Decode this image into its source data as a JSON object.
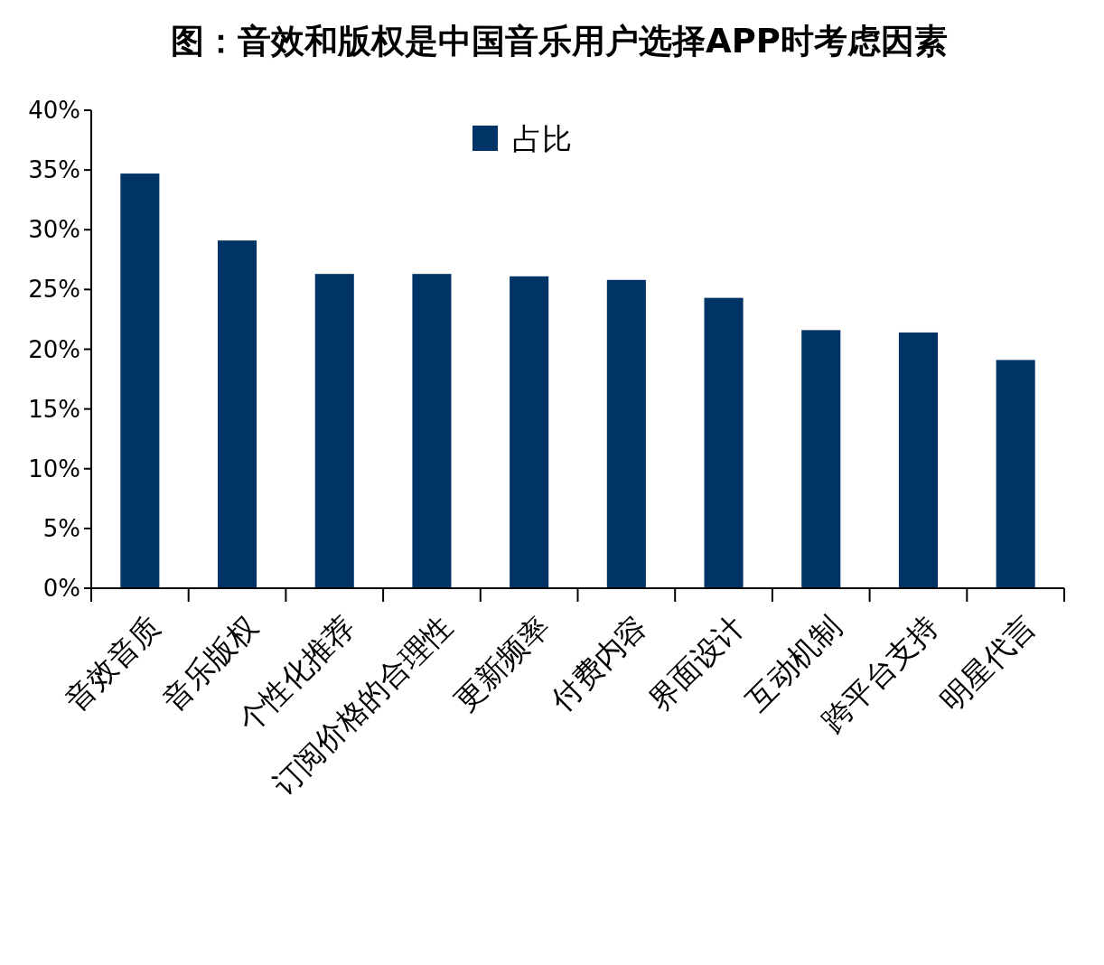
{
  "chart_data": {
    "type": "bar",
    "title": "图：音效和版权是中国音乐用户选择APP时考虑因素",
    "categories": [
      "音效音质",
      "音乐版权",
      "个性化推荐",
      "订阅价格的合理性",
      "更新频率",
      "付费内容",
      "界面设计",
      "互动机制",
      "跨平台支持",
      "明星代言"
    ],
    "series": [
      {
        "name": "占比",
        "color": "#003366",
        "values": [
          34.7,
          29.1,
          26.3,
          26.3,
          26.1,
          25.8,
          24.3,
          21.6,
          21.4,
          19.1
        ]
      }
    ],
    "ylim": [
      0,
      40
    ],
    "yticks": [
      {
        "value": 0,
        "label": "0%"
      },
      {
        "value": 5,
        "label": "5%"
      },
      {
        "value": 10,
        "label": "10%"
      },
      {
        "value": 15,
        "label": "15%"
      },
      {
        "value": 20,
        "label": "20%"
      },
      {
        "value": 25,
        "label": "25%"
      },
      {
        "value": 30,
        "label": "30%"
      },
      {
        "value": 35,
        "label": "35%"
      },
      {
        "value": 40,
        "label": "40%"
      }
    ],
    "legend": "top"
  }
}
